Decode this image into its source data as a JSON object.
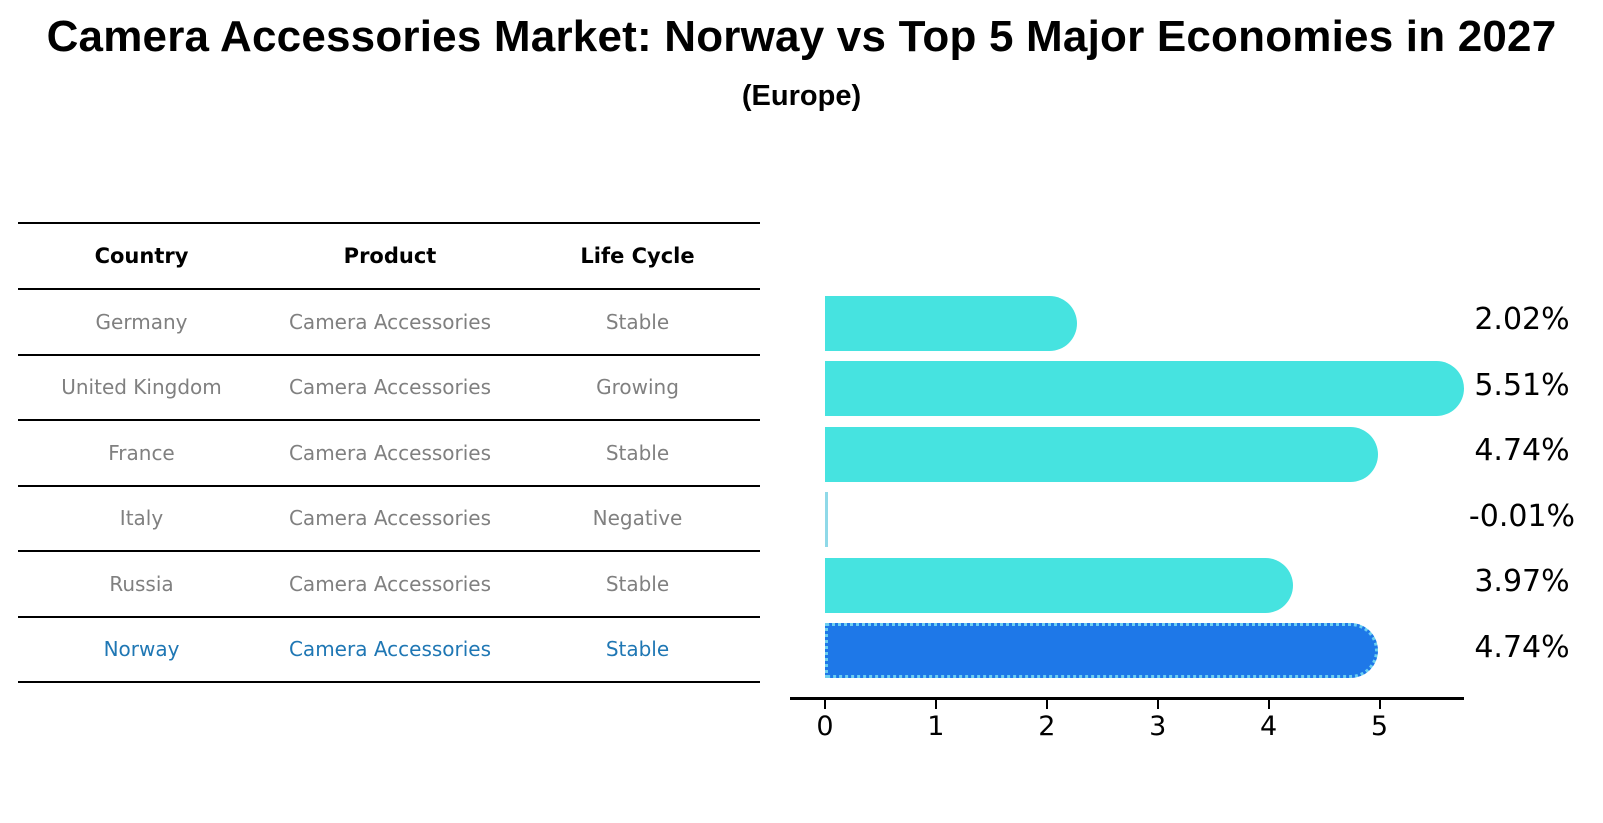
{
  "title": "Camera Accessories Market: Norway vs Top 5 Major Economies in 2027",
  "subtitle": "(Europe)",
  "table": {
    "headers": [
      "Country",
      "Product",
      "Life Cycle"
    ],
    "rows": [
      {
        "country": "Germany",
        "product": "Camera Accessories",
        "life_cycle": "Stable",
        "highlighted": false
      },
      {
        "country": "United Kingdom",
        "product": "Camera Accessories",
        "life_cycle": "Growing",
        "highlighted": false
      },
      {
        "country": "France",
        "product": "Camera Accessories",
        "life_cycle": "Stable",
        "highlighted": false
      },
      {
        "country": "Italy",
        "product": "Camera Accessories",
        "life_cycle": "Negative",
        "highlighted": false
      },
      {
        "country": "Russia",
        "product": "Camera Accessories",
        "life_cycle": "Stable",
        "highlighted": false
      },
      {
        "country": "Norway",
        "product": "Camera Accessories",
        "life_cycle": "Stable",
        "highlighted": true
      }
    ]
  },
  "chart_data": {
    "type": "bar",
    "orientation": "horizontal",
    "categories": [
      "Germany",
      "United Kingdom",
      "France",
      "Italy",
      "Russia",
      "Norway"
    ],
    "values": [
      2.02,
      5.51,
      4.74,
      -0.01,
      3.97,
      4.74
    ],
    "value_labels": [
      "2.02%",
      "5.51%",
      "4.74%",
      "-0.01%",
      "3.97%",
      "4.74%"
    ],
    "xticks": [
      "0",
      "1",
      "2",
      "3",
      "4",
      "5"
    ],
    "xlim": [
      -0.3,
      5.75
    ],
    "grid": false,
    "legend": "none",
    "highlight_category": "Norway",
    "title": "Camera Accessories Market: Norway vs Top 5 Major Economies in 2027 (Europe)"
  },
  "colors": {
    "bar_default": "#46E3E0",
    "bar_negative_sliver": "#8FD9E8",
    "bar_highlight": "#1E78E8",
    "highlight_border": "#6CCFF0",
    "table_text": "#808080",
    "highlight_text": "#1F77B4",
    "title_text": "#000000",
    "axis_line": "#000000"
  }
}
